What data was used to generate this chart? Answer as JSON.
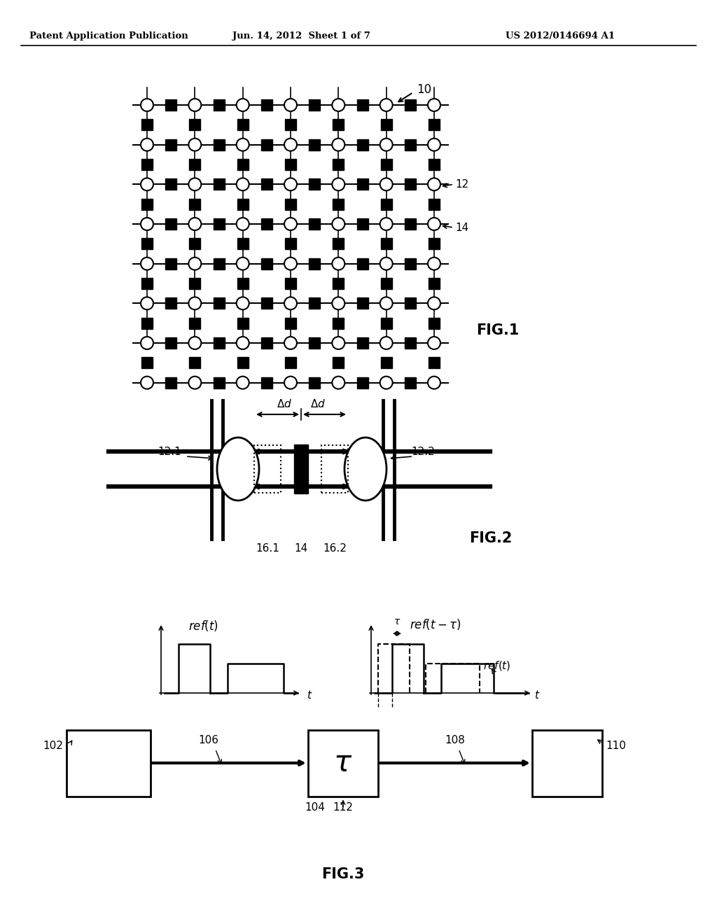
{
  "header_left": "Patent Application Publication",
  "header_center": "Jun. 14, 2012  Sheet 1 of 7",
  "header_right": "US 2012/0146694 A1",
  "fig1_label": "FIG.1",
  "fig2_label": "FIG.2",
  "fig3_label": "FIG.3",
  "label_10": "10",
  "label_12": "12",
  "label_14": "14",
  "label_12_1": "12.1",
  "label_12_2": "12.2",
  "label_16_1": "16.1",
  "label_16_2": "16.2",
  "label_14_fig2": "14",
  "label_102": "102",
  "label_104": "104",
  "label_106": "106",
  "label_108": "108",
  "label_110": "110",
  "label_112": "112",
  "background_color": "#ffffff"
}
